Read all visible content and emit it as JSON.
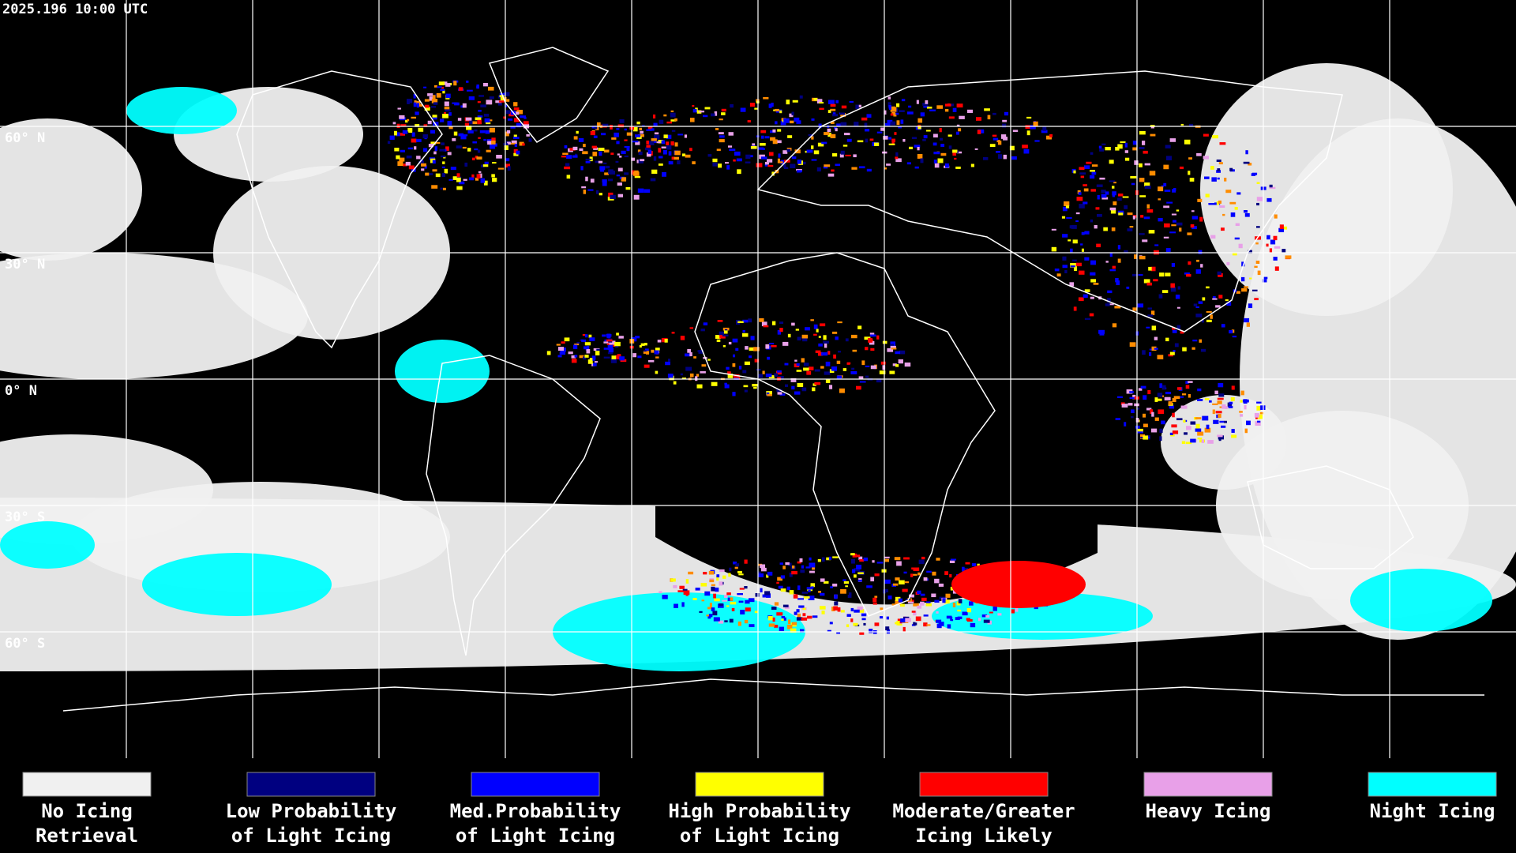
{
  "header": {
    "timestamp": "2025.196 10:00 UTC"
  },
  "map": {
    "lat_labels": [
      "60° N",
      "30° N",
      "0° N",
      "30° S",
      "60° S"
    ]
  },
  "legend": [
    {
      "color": "#f0f0f0",
      "lines": [
        "No Icing",
        "Retrieval"
      ]
    },
    {
      "color": "#000080",
      "lines": [
        "Low Probability",
        "of Light Icing"
      ]
    },
    {
      "color": "#0000ff",
      "lines": [
        "Med.Probability",
        "of Light Icing"
      ]
    },
    {
      "color": "#ffff00",
      "lines": [
        "High Probability",
        "of Light Icing"
      ]
    },
    {
      "color": "#ff0000",
      "lines": [
        "Moderate/Greater",
        "Icing Likely"
      ]
    },
    {
      "color": "#e8a0e8",
      "lines": [
        "Heavy Icing"
      ]
    },
    {
      "color": "#00ffff",
      "lines": [
        "Night Icing"
      ]
    }
  ]
}
